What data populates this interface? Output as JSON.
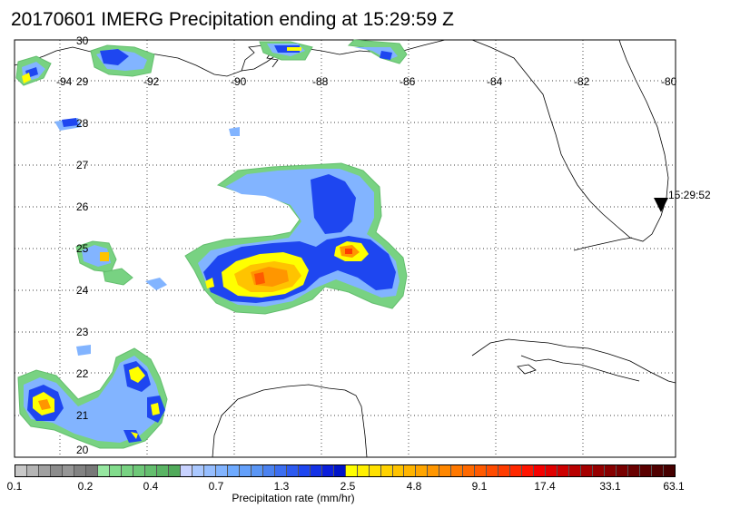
{
  "title": "20170601 IMERG Precipitation ending at 15:29:59 Z",
  "longitude_labels": [
    "-94",
    "-92",
    "-90",
    "-88",
    "-86",
    "-84",
    "-82",
    "-80"
  ],
  "latitude_labels": [
    "30",
    "29",
    "28",
    "27",
    "26",
    "25",
    "24",
    "23",
    "22",
    "21",
    "20"
  ],
  "track_marker": {
    "label": "15:29:52",
    "symbol": "black-down-triangle"
  },
  "colorbar": {
    "tick_labels": [
      "0.1",
      "0.2",
      "0.4",
      "0.7",
      "1.3",
      "2.5",
      "4.8",
      "9.1",
      "17.4",
      "33.1",
      "63.1"
    ],
    "units_label": "Precipitation rate (mm/hr)",
    "colors": [
      "#c8c8c8",
      "#b4b4b4",
      "#a0a0a0",
      "#8c8c8c",
      "#969696",
      "#828282",
      "#787878",
      "#96e6a0",
      "#82dc8c",
      "#78d282",
      "#6ec878",
      "#64be6e",
      "#5ab464",
      "#50aa5a",
      "#c8d2ff",
      "#aac8ff",
      "#96beff",
      "#82b4ff",
      "#6eaaff",
      "#64a0fa",
      "#5a96f5",
      "#4b82f0",
      "#3c6ef0",
      "#2d5af0",
      "#1e46f0",
      "#1432e6",
      "#0a1edc",
      "#0014c8",
      "#ffff00",
      "#fff000",
      "#ffe100",
      "#ffd200",
      "#ffc300",
      "#ffb400",
      "#ffa500",
      "#ff9600",
      "#ff8700",
      "#ff7800",
      "#ff6900",
      "#ff5a00",
      "#ff4b00",
      "#ff3c00",
      "#ff2800",
      "#ff1400",
      "#f50000",
      "#e10000",
      "#cd0000",
      "#b90000",
      "#a50000",
      "#960000",
      "#870000",
      "#780000",
      "#690000",
      "#5a0000",
      "#500000",
      "#460000"
    ]
  }
}
